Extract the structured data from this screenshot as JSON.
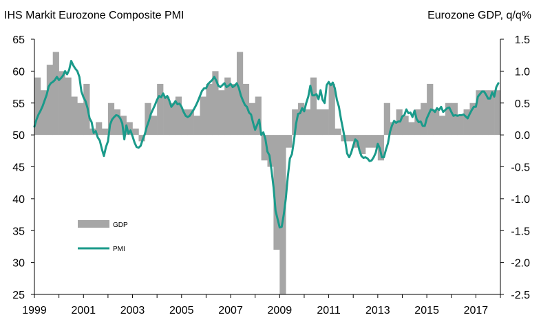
{
  "chart_data": {
    "type": "bar+line",
    "left_title": "IHS Markit Eurozone Composite PMI",
    "right_title": "Eurozone GDP, q/q%",
    "left_axis": {
      "min": 25,
      "max": 65,
      "ticks": [
        25,
        30,
        35,
        40,
        45,
        50,
        55,
        60,
        65
      ]
    },
    "right_axis": {
      "min": -2.5,
      "max": 1.5,
      "ticks": [
        "-2.5",
        "-2.0",
        "-1.5",
        "-1.0",
        "-0.5",
        "0.0",
        "0.5",
        "1.0",
        "1.5"
      ]
    },
    "x_range": [
      1999,
      2018
    ],
    "x_ticks": [
      "1999",
      "2001",
      "2003",
      "2005",
      "2007",
      "2009",
      "2011",
      "2013",
      "2015",
      "2017"
    ],
    "legend": {
      "gdp": "GDP",
      "pmi": "PMI"
    },
    "colors": {
      "gdp": "#a6a6a6",
      "pmi": "#1a9a8a"
    },
    "gdp_start": 1999.0,
    "gdp_qoq": [
      0.9,
      0.7,
      1.1,
      1.3,
      1.0,
      0.9,
      0.6,
      0.5,
      0.8,
      0.1,
      0.2,
      0.1,
      0.5,
      0.4,
      0.3,
      0.2,
      0.1,
      -0.1,
      0.5,
      0.3,
      0.8,
      0.6,
      0.5,
      0.6,
      0.4,
      0.4,
      0.3,
      0.6,
      0.8,
      1.0,
      0.7,
      0.9,
      0.8,
      1.3,
      0.8,
      0.5,
      0.6,
      -0.4,
      -0.5,
      -1.8,
      -2.9,
      -0.2,
      0.4,
      0.5,
      0.4,
      0.9,
      0.4,
      0.4,
      0.8,
      0.1,
      -0.1,
      -0.1,
      -0.2,
      -0.3,
      -0.2,
      -0.2,
      -0.4,
      0.5,
      0.2,
      0.4,
      0.3,
      0.2,
      0.4,
      0.5,
      0.8,
      0.4,
      0.3,
      0.5,
      0.5,
      0.3,
      0.4,
      0.5,
      0.7,
      0.7,
      0.7,
      0.7
    ],
    "pmi_monthly": [
      51.3,
      52.4,
      53.2,
      53.8,
      54.5,
      55.4,
      56.3,
      57.6,
      58.1,
      58.3,
      58.6,
      59.1,
      58.6,
      58.9,
      59.3,
      60.0,
      59.5,
      60.2,
      61.6,
      60.9,
      60.4,
      60.0,
      59.1,
      56.8,
      55.9,
      55.3,
      54.2,
      52.6,
      52.0,
      50.3,
      50.6,
      49.6,
      49.1,
      47.8,
      46.7,
      48.1,
      49.0,
      51.6,
      52.4,
      52.8,
      53.1,
      53.0,
      52.6,
      51.8,
      49.3,
      51.5,
      50.2,
      50.7,
      49.8,
      48.8,
      48.1,
      48.0,
      48.3,
      49.3,
      50.1,
      51.3,
      52.2,
      53.3,
      54.0,
      54.7,
      55.5,
      56.1,
      55.9,
      56.5,
      55.8,
      56.1,
      55.4,
      54.4,
      54.8,
      55.3,
      54.8,
      54.9,
      54.4,
      53.6,
      53.0,
      52.8,
      53.0,
      53.5,
      54.0,
      54.6,
      55.3,
      56.1,
      56.9,
      57.3,
      57.3,
      58.0,
      58.3,
      58.6,
      59.1,
      58.5,
      57.7,
      57.5,
      57.8,
      58.1,
      57.5,
      57.7,
      58.0,
      57.5,
      57.7,
      58.1,
      57.4,
      56.2,
      55.4,
      54.7,
      54.4,
      53.5,
      53.2,
      51.9,
      50.8,
      51.6,
      52.4,
      50.0,
      50.4,
      49.4,
      47.4,
      46.8,
      44.5,
      41.8,
      38.1,
      36.8,
      35.5,
      35.6,
      37.5,
      40.0,
      43.5,
      46.3,
      47.0,
      49.1,
      51.7,
      53.3,
      53.4,
      54.2,
      53.7,
      55.0,
      56.0,
      57.7,
      56.2,
      56.2,
      56.4,
      55.6,
      57.0,
      55.5,
      55.0,
      57.8,
      58.3,
      57.8,
      58.2,
      57.3,
      55.5,
      54.4,
      52.5,
      50.9,
      49.2,
      47.1,
      46.5,
      47.2,
      48.3,
      49.3,
      49.0,
      47.6,
      46.7,
      46.4,
      46.5,
      46.3,
      45.9,
      46.0,
      46.5,
      47.2,
      48.6,
      47.9,
      46.5,
      46.5,
      47.7,
      48.7,
      50.5,
      51.5,
      52.2,
      51.9,
      52.1,
      52.1,
      52.9,
      53.1,
      54.0,
      53.4,
      53.5,
      52.8,
      53.8,
      52.5,
      52.0,
      52.1,
      51.4,
      51.4,
      52.6,
      53.3,
      54.0,
      53.9,
      53.6,
      54.2,
      53.9,
      54.4,
      53.6,
      53.9,
      54.2,
      54.3,
      53.6,
      53.0,
      53.1,
      53.0,
      53.1,
      53.1,
      53.2,
      52.9,
      52.6,
      53.3,
      53.9,
      54.4,
      54.4,
      56.0,
      56.4,
      56.8,
      56.8,
      56.3,
      55.7,
      55.7,
      56.7,
      56.0,
      57.5,
      58.1
    ]
  }
}
